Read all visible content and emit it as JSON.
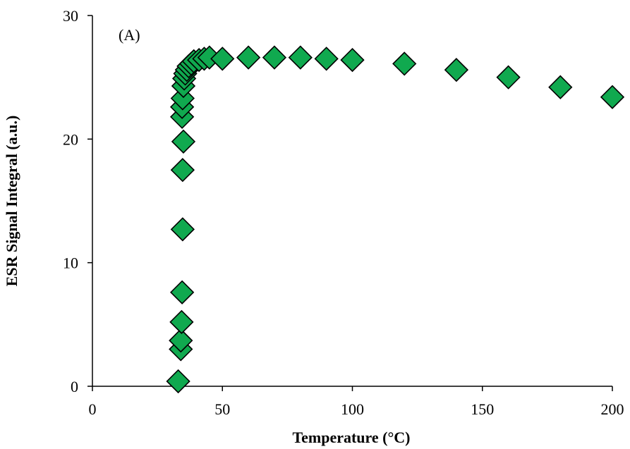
{
  "chart_data": {
    "type": "scatter",
    "panel_label": "(A)",
    "xlabel": "Temperature (°C)",
    "ylabel": "ESR Signal Integral (a.u.)",
    "xlim": [
      0,
      200
    ],
    "ylim": [
      0,
      30
    ],
    "xticks": [
      0,
      50,
      100,
      150,
      200
    ],
    "yticks": [
      0,
      10,
      20,
      30
    ],
    "grid": false,
    "legend": "none",
    "marker": "diamond",
    "marker_color": "#10a94f",
    "points": [
      [
        33,
        0.4
      ],
      [
        34,
        3.0
      ],
      [
        34,
        3.7
      ],
      [
        34.3,
        5.2
      ],
      [
        34.5,
        7.6
      ],
      [
        34.7,
        12.7
      ],
      [
        34.7,
        17.5
      ],
      [
        35,
        19.8
      ],
      [
        34.5,
        21.8
      ],
      [
        34.5,
        22.6
      ],
      [
        34.7,
        23.3
      ],
      [
        35,
        24.3
      ],
      [
        35.3,
        24.9
      ],
      [
        35.7,
        25.3
      ],
      [
        36.3,
        25.6
      ],
      [
        37,
        25.9
      ],
      [
        38,
        26.1
      ],
      [
        39,
        26.3
      ],
      [
        41,
        26.4
      ],
      [
        43,
        26.5
      ],
      [
        45,
        26.6
      ],
      [
        50,
        26.5
      ],
      [
        60,
        26.6
      ],
      [
        70,
        26.6
      ],
      [
        80,
        26.6
      ],
      [
        90,
        26.5
      ],
      [
        100,
        26.4
      ],
      [
        120,
        26.1
      ],
      [
        140,
        25.6
      ],
      [
        160,
        25.0
      ],
      [
        180,
        24.2
      ],
      [
        200,
        23.4
      ]
    ]
  }
}
